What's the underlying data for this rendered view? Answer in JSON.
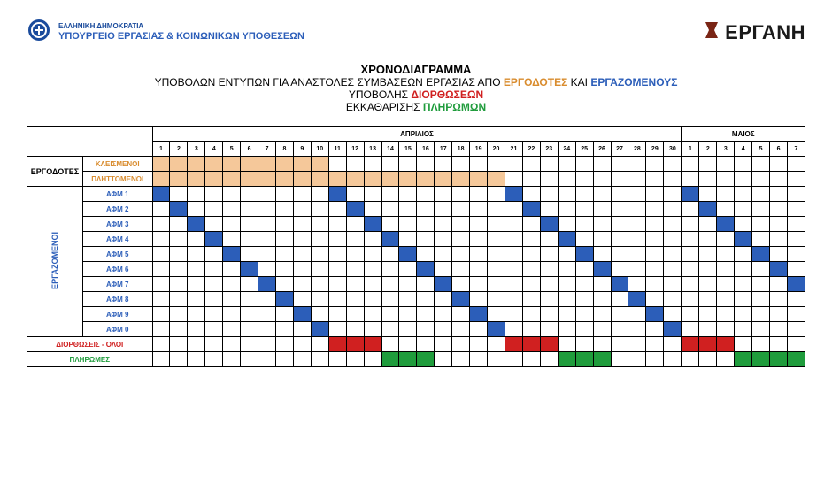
{
  "header": {
    "gov_sub": "ΕΛΛΗΝΙΚΗ ΔΗΜΟΚΡΑΤΙΑ",
    "gov_main": "ΥΠΟΥΡΓΕΙΟ ΕΡΓΑΣΙΑΣ & ΚΟΙΝΩΝΙΚΩΝ ΥΠΟΘΕΣΕΩΝ",
    "ergani": "ΕΡΓΑΝΗ"
  },
  "titles": {
    "line1": "ΧΡΟΝΟΔΙΑΓΡΑΜΜΑ",
    "line2_a": "ΥΠΟΒΟΛΩΝ ΕΝΤΥΠΩΝ ΓΙΑ ΑΝΑΣΤΟΛΕΣ ΣΥΜΒΑΣΕΩΝ ΕΡΓΑΣΙΑΣ ΑΠΟ ",
    "line2_emp": "ΕΡΓΟΔΟΤΕΣ",
    "line2_and": " ΚΑΙ ",
    "line2_wrk": "ΕΡΓΑΖΟΜΕΝΟΥΣ",
    "line3_a": "ΥΠΟΒΟΛΗΣ ",
    "line3_b": "ΔΙΟΡΘΩΣΕΩΝ",
    "line4_a": "ΕΚΚΑΘΑΡΙΣΗΣ ",
    "line4_b": "ΠΛΗΡΩΜΩΝ"
  },
  "months": {
    "april": "ΑΠΡΙΛΙΟΣ",
    "may": "ΜΑΙΟΣ"
  },
  "days_april": [
    "1",
    "2",
    "3",
    "4",
    "5",
    "6",
    "7",
    "8",
    "9",
    "10",
    "11",
    "12",
    "13",
    "14",
    "15",
    "16",
    "17",
    "18",
    "19",
    "20",
    "21",
    "22",
    "23",
    "24",
    "25",
    "26",
    "27",
    "28",
    "29",
    "30"
  ],
  "days_may": [
    "1",
    "2",
    "3",
    "4",
    "5",
    "6",
    "7"
  ],
  "groups": {
    "employers": "ΕΡΓΟΔΟΤΕΣ",
    "employees": "ΕΡΓΑΖΟΜΕΝΟΙ"
  },
  "rows": {
    "closed": {
      "label": "ΚΛΕΙΣΜΕΝΟΙ",
      "color_label": "#d98c2e",
      "cells": [
        1,
        2,
        3,
        4,
        5,
        6,
        7,
        8,
        9,
        10
      ],
      "fill": "#f5c89a"
    },
    "affected": {
      "label": "ΠΛΗΤΤΟΜΕΝΟΙ",
      "color_label": "#d98c2e",
      "cells": [
        1,
        2,
        3,
        4,
        5,
        6,
        7,
        8,
        9,
        10,
        11,
        12,
        13,
        14,
        15,
        16,
        17,
        18,
        19,
        20
      ],
      "fill": "#f5c89a"
    },
    "afm1": {
      "label": "ΑΦΜ 1",
      "color_label": "#2c5eb9",
      "cells": [
        1,
        11,
        21,
        31
      ],
      "fill": "#2c5eb9"
    },
    "afm2": {
      "label": "ΑΦΜ 2",
      "color_label": "#2c5eb9",
      "cells": [
        2,
        12,
        22,
        32
      ],
      "fill": "#2c5eb9"
    },
    "afm3": {
      "label": "ΑΦΜ 3",
      "color_label": "#2c5eb9",
      "cells": [
        3,
        13,
        23,
        33
      ],
      "fill": "#2c5eb9"
    },
    "afm4": {
      "label": "ΑΦΜ 4",
      "color_label": "#2c5eb9",
      "cells": [
        4,
        14,
        24,
        34
      ],
      "fill": "#2c5eb9"
    },
    "afm5": {
      "label": "ΑΦΜ 5",
      "color_label": "#2c5eb9",
      "cells": [
        5,
        15,
        25,
        35
      ],
      "fill": "#2c5eb9"
    },
    "afm6": {
      "label": "ΑΦΜ 6",
      "color_label": "#2c5eb9",
      "cells": [
        6,
        16,
        26,
        36
      ],
      "fill": "#2c5eb9"
    },
    "afm7": {
      "label": "ΑΦΜ 7",
      "color_label": "#2c5eb9",
      "cells": [
        7,
        17,
        27,
        37
      ],
      "fill": "#2c5eb9"
    },
    "afm8": {
      "label": "ΑΦΜ 8",
      "color_label": "#2c5eb9",
      "cells": [
        8,
        18,
        28
      ],
      "fill": "#2c5eb9"
    },
    "afm9": {
      "label": "ΑΦΜ 9",
      "color_label": "#2c5eb9",
      "cells": [
        9,
        19,
        29
      ],
      "fill": "#2c5eb9"
    },
    "afm0": {
      "label": "ΑΦΜ 0",
      "color_label": "#2c5eb9",
      "cells": [
        10,
        20,
        30
      ],
      "fill": "#2c5eb9"
    },
    "corrections": {
      "label": "ΔΙΟΡΘΩΣΕΙΣ - ΟΛΟΙ",
      "color_label": "#d02020",
      "cells": [
        11,
        12,
        13,
        21,
        22,
        23,
        31,
        32,
        33
      ],
      "fill": "#d02020"
    },
    "payments": {
      "label": "ΠΛΗΡΩΜΕΣ",
      "color_label": "#1f9c3c",
      "cells": [
        14,
        15,
        16,
        24,
        25,
        26,
        34,
        35,
        36,
        37
      ],
      "fill": "#1f9c3c"
    }
  },
  "layout": {
    "total_day_columns": 37,
    "group_col_width": 60,
    "label_col_width": 75,
    "day_col_width": 19
  },
  "colors": {
    "border": "#000000",
    "background": "#ffffff",
    "orange_fill": "#f5c89a",
    "blue_fill": "#2c5eb9",
    "red_fill": "#d02020",
    "green_fill": "#1f9c3c"
  }
}
